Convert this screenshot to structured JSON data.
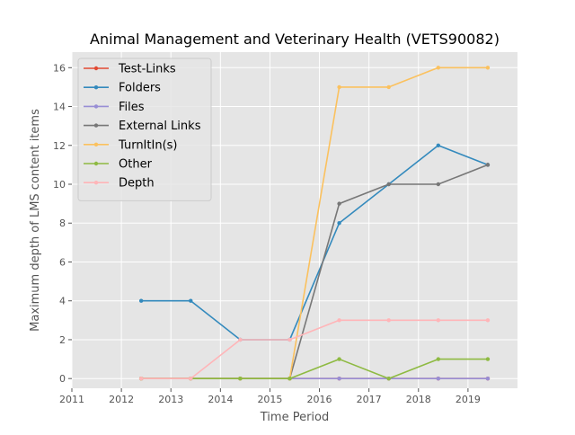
{
  "chart_data": {
    "type": "line",
    "title": "Animal Management and Veterinary Health (VETS90082)",
    "xlabel": "Time Period",
    "ylabel": "Maximum depth of LMS content items",
    "xlim": [
      2011,
      2020
    ],
    "ylim": [
      -0.5,
      16.8
    ],
    "xticks": [
      2011,
      2012,
      2013,
      2014,
      2015,
      2016,
      2017,
      2018,
      2019
    ],
    "yticks": [
      0,
      2,
      4,
      6,
      8,
      10,
      12,
      14,
      16
    ],
    "grid": true,
    "legend_position": "upper-left",
    "x": [
      2012.4,
      2013.4,
      2014.4,
      2015.4,
      2016.4,
      2017.4,
      2018.4,
      2019.4
    ],
    "series": [
      {
        "name": "Test-Links",
        "color": "#E24A33",
        "values": [
          0,
          0,
          0,
          0,
          0,
          0,
          0,
          0
        ]
      },
      {
        "name": "Folders",
        "color": "#348ABD",
        "values": [
          4,
          4,
          2,
          2,
          8,
          10,
          12,
          11
        ]
      },
      {
        "name": "Files",
        "color": "#988ED5",
        "values": [
          0,
          0,
          0,
          0,
          0,
          0,
          0,
          0
        ]
      },
      {
        "name": "External Links",
        "color": "#777777",
        "values": [
          0,
          0,
          0,
          0,
          9,
          10,
          10,
          11
        ]
      },
      {
        "name": "TurnItIn(s)",
        "color": "#FBC15E",
        "values": [
          0,
          0,
          0,
          0,
          15,
          15,
          16,
          16
        ]
      },
      {
        "name": "Other",
        "color": "#8EBA42",
        "values": [
          0,
          0,
          0,
          0,
          1,
          0,
          1,
          1
        ]
      },
      {
        "name": "Depth",
        "color": "#FFB5B8",
        "values": [
          0,
          0,
          2,
          2,
          3,
          3,
          3,
          3
        ]
      }
    ]
  }
}
